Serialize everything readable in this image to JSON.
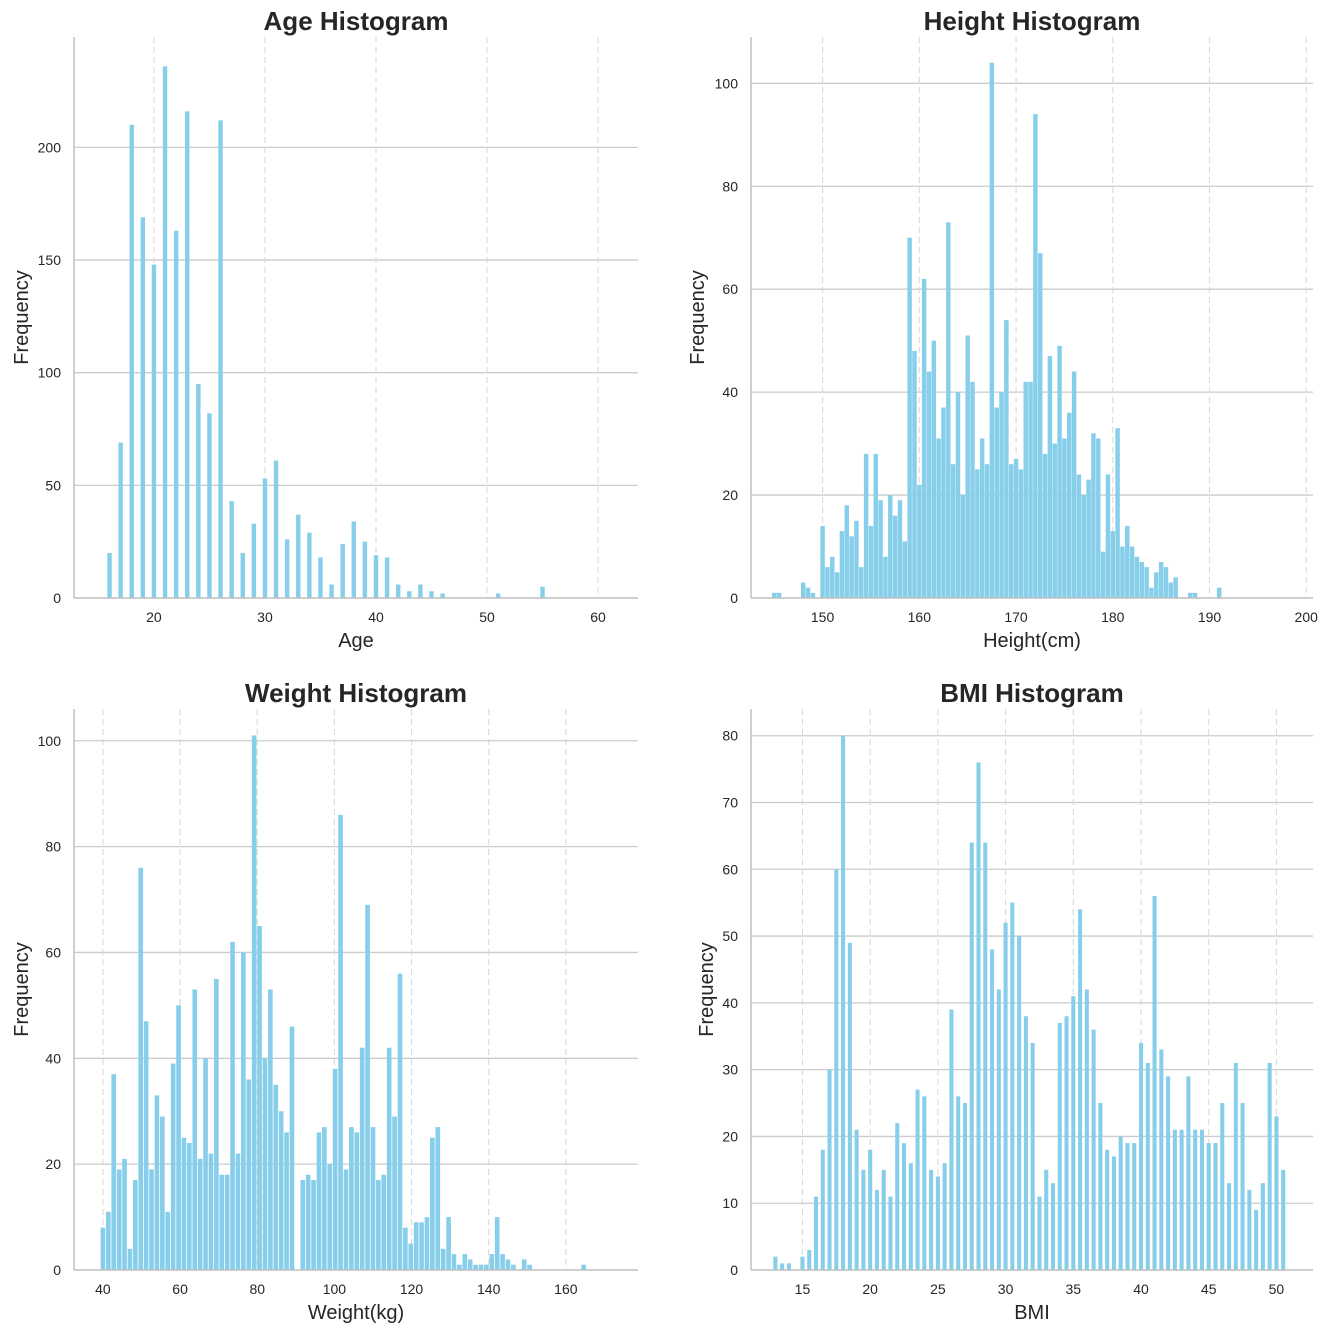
{
  "colors": {
    "bar": "#87ceeb",
    "grid": "#cccccc",
    "vgrid": "#d9d9d9",
    "axis": "#bfbfbf",
    "text": "#262626"
  },
  "chart_data": [
    {
      "type": "bar",
      "title": "Age Histogram",
      "xlabel": "Age",
      "ylabel": "Frequency",
      "xticks": [
        20,
        30,
        40,
        50,
        60
      ],
      "yticks": [
        0,
        50,
        100,
        150,
        200
      ],
      "xlim": [
        12.8,
        63.6
      ],
      "ylim": [
        0,
        249
      ],
      "vgrid_dashed": true,
      "bar_width": 0.4,
      "bars": [
        [
          16,
          20
        ],
        [
          17,
          69
        ],
        [
          18,
          210
        ],
        [
          19,
          169
        ],
        [
          20,
          148
        ],
        [
          21,
          236
        ],
        [
          22,
          163
        ],
        [
          23,
          216
        ],
        [
          24,
          95
        ],
        [
          25,
          82
        ],
        [
          26,
          212
        ],
        [
          27,
          43
        ],
        [
          28,
          20
        ],
        [
          29,
          33
        ],
        [
          30,
          53
        ],
        [
          31,
          61
        ],
        [
          32,
          26
        ],
        [
          33,
          37
        ],
        [
          34,
          29
        ],
        [
          35,
          18
        ],
        [
          36,
          6
        ],
        [
          37,
          24
        ],
        [
          38,
          34
        ],
        [
          39,
          25
        ],
        [
          40,
          19
        ],
        [
          41,
          18
        ],
        [
          42,
          6
        ],
        [
          43,
          3
        ],
        [
          44,
          6
        ],
        [
          45,
          3
        ],
        [
          46,
          2
        ],
        [
          51,
          2
        ],
        [
          55,
          5
        ]
      ]
    },
    {
      "type": "bar",
      "title": "Height Histogram",
      "xlabel": "Height(cm)",
      "ylabel": "Frequency",
      "xticks": [
        150,
        160,
        170,
        180,
        190,
        200
      ],
      "yticks": [
        0,
        20,
        40,
        60,
        80,
        100
      ],
      "xlim": [
        142.6,
        200.7
      ],
      "ylim": [
        0,
        109
      ],
      "vgrid_dashed": true,
      "bar_width": 0.46,
      "bars": [
        [
          145,
          1
        ],
        [
          145.5,
          1
        ],
        [
          148,
          3
        ],
        [
          148.5,
          2
        ],
        [
          149,
          1
        ],
        [
          150,
          14
        ],
        [
          150.5,
          6
        ],
        [
          151,
          8
        ],
        [
          151.5,
          5
        ],
        [
          152,
          13
        ],
        [
          152.5,
          18
        ],
        [
          153,
          12
        ],
        [
          153.5,
          15
        ],
        [
          154,
          6
        ],
        [
          154.5,
          28
        ],
        [
          155,
          14
        ],
        [
          155.5,
          28
        ],
        [
          156,
          19
        ],
        [
          156.5,
          8
        ],
        [
          157,
          20
        ],
        [
          157.5,
          16
        ],
        [
          158,
          19
        ],
        [
          158.5,
          11
        ],
        [
          159,
          70
        ],
        [
          159.5,
          48
        ],
        [
          160,
          22
        ],
        [
          160.5,
          62
        ],
        [
          161,
          44
        ],
        [
          161.5,
          50
        ],
        [
          162,
          31
        ],
        [
          162.5,
          37
        ],
        [
          163,
          73
        ],
        [
          163.5,
          26
        ],
        [
          164,
          40
        ],
        [
          164.5,
          20
        ],
        [
          165,
          51
        ],
        [
          165.5,
          42
        ],
        [
          166,
          25
        ],
        [
          166.5,
          31
        ],
        [
          167,
          26
        ],
        [
          167.5,
          104
        ],
        [
          168,
          37
        ],
        [
          168.5,
          40
        ],
        [
          169,
          54
        ],
        [
          169.5,
          26
        ],
        [
          170,
          27
        ],
        [
          170.5,
          25
        ],
        [
          171,
          42
        ],
        [
          171.5,
          42
        ],
        [
          172,
          94
        ],
        [
          172.5,
          67
        ],
        [
          173,
          28
        ],
        [
          173.5,
          47
        ],
        [
          174,
          30
        ],
        [
          174.5,
          49
        ],
        [
          175,
          31
        ],
        [
          175.5,
          36
        ],
        [
          176,
          44
        ],
        [
          176.5,
          24
        ],
        [
          177,
          20
        ],
        [
          177.5,
          23
        ],
        [
          178,
          32
        ],
        [
          178.5,
          31
        ],
        [
          179,
          9
        ],
        [
          179.5,
          24
        ],
        [
          180,
          13
        ],
        [
          180.5,
          33
        ],
        [
          181,
          10
        ],
        [
          181.5,
          14
        ],
        [
          182,
          10
        ],
        [
          182.5,
          8
        ],
        [
          183,
          7
        ],
        [
          183.5,
          6
        ],
        [
          184,
          2
        ],
        [
          184.5,
          5
        ],
        [
          185,
          7
        ],
        [
          185.5,
          6
        ],
        [
          186,
          3
        ],
        [
          186.5,
          4
        ],
        [
          188,
          1
        ],
        [
          188.5,
          1
        ],
        [
          191,
          2
        ]
      ]
    },
    {
      "type": "bar",
      "title": "Weight Histogram",
      "xlabel": "Weight(kg)",
      "ylabel": "Frequency",
      "xticks": [
        40,
        60,
        80,
        100,
        120,
        140,
        160
      ],
      "yticks": [
        0,
        20,
        40,
        60,
        80,
        100
      ],
      "xlim": [
        32.5,
        178.7
      ],
      "ylim": [
        0,
        106
      ],
      "vgrid_dashed": true,
      "bar_width": 1.2,
      "bars": [
        [
          40,
          8
        ],
        [
          41.4,
          11
        ],
        [
          42.8,
          37
        ],
        [
          44.2,
          19
        ],
        [
          45.6,
          21
        ],
        [
          47,
          4
        ],
        [
          48.4,
          17
        ],
        [
          49.8,
          76
        ],
        [
          51.2,
          47
        ],
        [
          52.6,
          19
        ],
        [
          54,
          33
        ],
        [
          55.4,
          29
        ],
        [
          56.8,
          11
        ],
        [
          58.2,
          39
        ],
        [
          59.6,
          50
        ],
        [
          61,
          25
        ],
        [
          62.4,
          24
        ],
        [
          63.8,
          53
        ],
        [
          65.2,
          21
        ],
        [
          66.6,
          40
        ],
        [
          68,
          22
        ],
        [
          69.4,
          55
        ],
        [
          70.8,
          18
        ],
        [
          72.2,
          18
        ],
        [
          73.6,
          62
        ],
        [
          75,
          22
        ],
        [
          76.4,
          60
        ],
        [
          77.8,
          36
        ],
        [
          79.2,
          101
        ],
        [
          80.6,
          65
        ],
        [
          82,
          40
        ],
        [
          83.4,
          53
        ],
        [
          84.8,
          35
        ],
        [
          86.2,
          30
        ],
        [
          87.6,
          26
        ],
        [
          89,
          46
        ],
        [
          90.4,
          0
        ],
        [
          91.8,
          17
        ],
        [
          93.2,
          18
        ],
        [
          94.6,
          17
        ],
        [
          96,
          26
        ],
        [
          97.4,
          27
        ],
        [
          98.8,
          20
        ],
        [
          100.2,
          38
        ],
        [
          101.6,
          86
        ],
        [
          103,
          19
        ],
        [
          104.4,
          27
        ],
        [
          105.8,
          26
        ],
        [
          107.2,
          42
        ],
        [
          108.6,
          69
        ],
        [
          110,
          27
        ],
        [
          111.4,
          17
        ],
        [
          112.8,
          18
        ],
        [
          114.2,
          42
        ],
        [
          115.6,
          29
        ],
        [
          117,
          56
        ],
        [
          118.4,
          8
        ],
        [
          119.8,
          5
        ],
        [
          121.2,
          9
        ],
        [
          122.6,
          9
        ],
        [
          124,
          10
        ],
        [
          125.4,
          25
        ],
        [
          126.8,
          27
        ],
        [
          128.2,
          4
        ],
        [
          129.6,
          10
        ],
        [
          131,
          3
        ],
        [
          132.4,
          1
        ],
        [
          133.8,
          3
        ],
        [
          135.2,
          2
        ],
        [
          136.6,
          1
        ],
        [
          138,
          1
        ],
        [
          139.4,
          1
        ],
        [
          140.8,
          3
        ],
        [
          142.2,
          10
        ],
        [
          143.6,
          3
        ],
        [
          145,
          2
        ],
        [
          146.4,
          1
        ],
        [
          149.2,
          2
        ],
        [
          150.6,
          1
        ],
        [
          164.6,
          1
        ]
      ]
    },
    {
      "type": "bar",
      "title": "BMI Histogram",
      "xlabel": "BMI",
      "ylabel": "Frequency",
      "xticks": [
        15,
        20,
        25,
        30,
        35,
        40,
        45,
        50
      ],
      "yticks": [
        0,
        10,
        20,
        30,
        40,
        50,
        60,
        70,
        80
      ],
      "xlim": [
        11.2,
        52.7
      ],
      "ylim": [
        0,
        84
      ],
      "vgrid_dashed": true,
      "bar_width": 0.3,
      "bars": [
        [
          13,
          2
        ],
        [
          13.5,
          1
        ],
        [
          14,
          1
        ],
        [
          15,
          2
        ],
        [
          15.5,
          3
        ],
        [
          16,
          11
        ],
        [
          16.5,
          18
        ],
        [
          17,
          30
        ],
        [
          17.5,
          60
        ],
        [
          18,
          80
        ],
        [
          18.5,
          49
        ],
        [
          19,
          21
        ],
        [
          19.5,
          15
        ],
        [
          20,
          18
        ],
        [
          20.5,
          12
        ],
        [
          21,
          15
        ],
        [
          21.5,
          11
        ],
        [
          22,
          22
        ],
        [
          22.5,
          19
        ],
        [
          23,
          16
        ],
        [
          23.5,
          27
        ],
        [
          24,
          26
        ],
        [
          24.5,
          15
        ],
        [
          25,
          14
        ],
        [
          25.5,
          16
        ],
        [
          26,
          39
        ],
        [
          26.5,
          26
        ],
        [
          27,
          25
        ],
        [
          27.5,
          64
        ],
        [
          28,
          76
        ],
        [
          28.5,
          64
        ],
        [
          29,
          48
        ],
        [
          29.5,
          42
        ],
        [
          30,
          52
        ],
        [
          30.5,
          55
        ],
        [
          31,
          50
        ],
        [
          31.5,
          38
        ],
        [
          32,
          34
        ],
        [
          32.5,
          11
        ],
        [
          33,
          15
        ],
        [
          33.5,
          13
        ],
        [
          34,
          37
        ],
        [
          34.5,
          38
        ],
        [
          35,
          41
        ],
        [
          35.5,
          54
        ],
        [
          36,
          42
        ],
        [
          36.5,
          36
        ],
        [
          37,
          25
        ],
        [
          37.5,
          18
        ],
        [
          38,
          17
        ],
        [
          38.5,
          20
        ],
        [
          39,
          19
        ],
        [
          39.5,
          19
        ],
        [
          40,
          34
        ],
        [
          40.5,
          31
        ],
        [
          41,
          56
        ],
        [
          41.5,
          33
        ],
        [
          42,
          29
        ],
        [
          42.5,
          21
        ],
        [
          43,
          21
        ],
        [
          43.5,
          29
        ],
        [
          44,
          21
        ],
        [
          44.5,
          21
        ],
        [
          45,
          19
        ],
        [
          45.5,
          19
        ],
        [
          46,
          25
        ],
        [
          46.5,
          13
        ],
        [
          47,
          31
        ],
        [
          47.5,
          25
        ],
        [
          48,
          12
        ],
        [
          48.5,
          9
        ],
        [
          49,
          13
        ],
        [
          49.5,
          31
        ],
        [
          50,
          23
        ],
        [
          50.5,
          15
        ]
      ]
    }
  ]
}
